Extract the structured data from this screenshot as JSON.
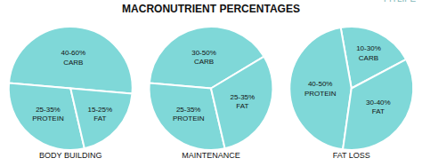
{
  "title": "MACRONUTRIENT PERCENTAGES",
  "annotations": [
    "FITLIFE"
  ],
  "chart_data": [
    {
      "type": "pie",
      "title": "BODY BUILDING",
      "categories": [
        "40-60%\nCARB",
        "25-35%\nPROTEIN",
        "15-25%\nFAT"
      ],
      "values": [
        50,
        30,
        20
      ],
      "color": "#7fd8d8"
    },
    {
      "type": "pie",
      "title": "MAINTENANCE",
      "categories": [
        "30-50%\nCARB",
        "25-35%\nPROTEIN",
        "25-35%\nFAT"
      ],
      "values": [
        40,
        30,
        30
      ],
      "color": "#7fd8d8"
    },
    {
      "type": "pie",
      "title": "FAT LOSS",
      "categories": [
        "10-30%\nCARB",
        "40-50%\nPROTEIN",
        "30-40%\nFAT"
      ],
      "values": [
        20,
        45,
        35
      ],
      "color": "#7fd8d8"
    }
  ]
}
